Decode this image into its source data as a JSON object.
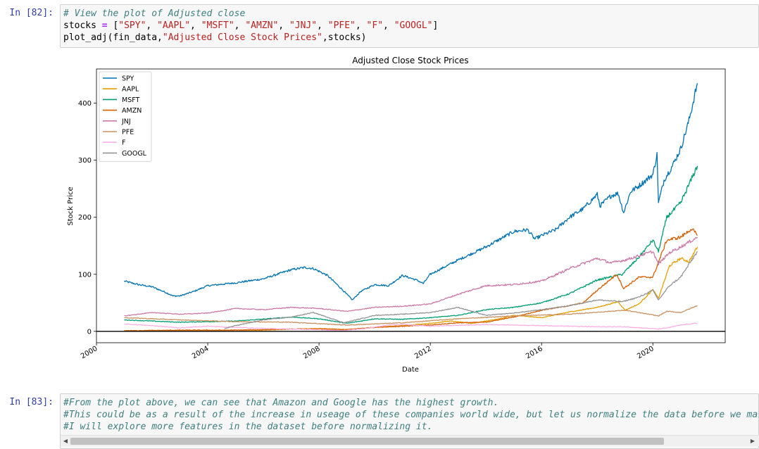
{
  "cells": {
    "cell1": {
      "prompt": "In [82]:",
      "line1_comment": "# View the plot of Adjusted close",
      "line2": {
        "var": "stocks ",
        "eq": "=",
        "open": " [",
        "items": [
          "\"SPY\"",
          "\"AAPL\"",
          "\"MSFT\"",
          "\"AMZN\"",
          "\"JNJ\"",
          "\"PFE\"",
          "\"F\"",
          "\"GOOGL\""
        ],
        "close": "]"
      },
      "line3": {
        "fn": "plot_adj(fin_data,",
        "str": "\"Adjusted Close Stock Prices\"",
        "end": ",stocks)"
      }
    },
    "cell2": {
      "prompt": "In [83]:",
      "lines": [
        "#From the plot above, we can see that Amazon and Google has the highest growth.",
        "#This could be as a result of the increase in useage of these companies world wide, but let us normalize the data before we make",
        "#I will explore more features in the dataset before normalizing it."
      ]
    }
  },
  "chart_data": {
    "type": "line",
    "title": "Adjusted Close Stock Prices",
    "xlabel": "Date",
    "ylabel": "Stock Price",
    "xlim": [
      2000,
      2022.6
    ],
    "ylim": [
      -20,
      460
    ],
    "xticks": [
      2000,
      2004,
      2008,
      2012,
      2016,
      2020
    ],
    "xtick_labels": [
      "2000",
      "2004",
      "2008",
      "2012",
      "2016",
      "2020"
    ],
    "yticks": [
      0,
      100,
      200,
      300,
      400
    ],
    "ytick_labels": [
      "0",
      "100",
      "200",
      "300",
      "400"
    ],
    "legend_position": "upper-left",
    "grid": false,
    "zero_line": true,
    "series": [
      {
        "name": "SPY",
        "color": "#0072b2",
        "x": [
          2001.0,
          2001.5,
          2002.0,
          2002.5,
          2002.75,
          2003.0,
          2003.5,
          2004.0,
          2005.0,
          2006.0,
          2007.0,
          2007.5,
          2007.8,
          2008.3,
          2008.8,
          2009.2,
          2009.5,
          2010.0,
          2010.5,
          2011.0,
          2011.5,
          2011.75,
          2012.0,
          2013.0,
          2014.0,
          2015.0,
          2015.5,
          2015.75,
          2016.1,
          2016.5,
          2017.0,
          2017.5,
          2018.0,
          2018.1,
          2018.5,
          2018.75,
          2018.95,
          2019.2,
          2019.5,
          2020.0,
          2020.15,
          2020.2,
          2020.4,
          2020.7,
          2021.0,
          2021.3,
          2021.6
        ],
        "y": [
          88,
          82,
          78,
          68,
          62,
          62,
          70,
          80,
          85,
          92,
          108,
          112,
          110,
          98,
          75,
          55,
          70,
          82,
          80,
          98,
          90,
          84,
          100,
          125,
          148,
          175,
          178,
          162,
          170,
          178,
          200,
          215,
          240,
          220,
          238,
          242,
          208,
          245,
          255,
          275,
          310,
          225,
          265,
          290,
          320,
          370,
          435
        ]
      },
      {
        "name": "AAPL",
        "color": "#e69f00",
        "x": [
          2001.0,
          2003.0,
          2004.0,
          2005.0,
          2006.0,
          2007.0,
          2008.0,
          2009.0,
          2010.0,
          2011.0,
          2012.0,
          2012.7,
          2013.5,
          2014.5,
          2015.0,
          2016.0,
          2017.0,
          2018.0,
          2018.75,
          2019.0,
          2019.5,
          2020.0,
          2020.2,
          2020.6,
          2021.0,
          2021.3,
          2021.6
        ],
        "y": [
          1,
          1,
          1,
          2,
          2,
          4,
          5,
          3,
          7,
          10,
          14,
          18,
          14,
          22,
          28,
          24,
          34,
          42,
          52,
          37,
          48,
          73,
          58,
          115,
          128,
          122,
          148
        ]
      },
      {
        "name": "MSFT",
        "color": "#009e73",
        "x": [
          2001.0,
          2002.0,
          2003.0,
          2005.0,
          2007.0,
          2008.0,
          2009.0,
          2010.0,
          2011.0,
          2012.0,
          2013.0,
          2014.0,
          2015.0,
          2016.0,
          2017.0,
          2018.0,
          2018.9,
          2019.5,
          2020.0,
          2020.2,
          2020.5,
          2021.0,
          2021.6
        ],
        "y": [
          20,
          18,
          16,
          18,
          25,
          22,
          14,
          22,
          21,
          24,
          28,
          38,
          42,
          50,
          66,
          90,
          100,
          130,
          160,
          140,
          200,
          225,
          290
        ]
      },
      {
        "name": "AMZN",
        "color": "#d55e00",
        "x": [
          2001.0,
          2003.0,
          2005.0,
          2007.0,
          2008.0,
          2009.0,
          2010.0,
          2011.0,
          2012.0,
          2013.0,
          2014.0,
          2015.0,
          2016.0,
          2017.0,
          2017.5,
          2018.0,
          2018.7,
          2018.95,
          2019.5,
          2020.0,
          2020.5,
          2021.0,
          2021.4,
          2021.6
        ],
        "y": [
          1,
          2,
          2,
          4,
          4,
          3,
          7,
          9,
          11,
          15,
          16,
          25,
          37,
          45,
          50,
          72,
          100,
          75,
          95,
          95,
          160,
          165,
          180,
          168
        ]
      },
      {
        "name": "JNJ",
        "color": "#cc79a7",
        "x": [
          2001.0,
          2002.0,
          2003.0,
          2004.0,
          2005.0,
          2006.0,
          2007.0,
          2008.0,
          2009.0,
          2010.0,
          2011.0,
          2012.0,
          2013.0,
          2014.0,
          2015.0,
          2016.0,
          2017.0,
          2018.0,
          2018.5,
          2019.0,
          2020.0,
          2020.2,
          2020.6,
          2021.0,
          2021.6
        ],
        "y": [
          27,
          33,
          30,
          32,
          40,
          38,
          42,
          40,
          35,
          42,
          44,
          48,
          65,
          80,
          82,
          88,
          110,
          128,
          120,
          125,
          140,
          118,
          138,
          148,
          165
        ]
      },
      {
        "name": "PFE",
        "color": "#ca9161",
        "x": [
          2001.0,
          2003.0,
          2005.0,
          2007.0,
          2009.0,
          2011.0,
          2013.0,
          2015.0,
          2017.0,
          2019.0,
          2020.2,
          2020.5,
          2021.0,
          2021.6
        ],
        "y": [
          24,
          20,
          17,
          16,
          11,
          15,
          22,
          27,
          30,
          37,
          27,
          35,
          33,
          45
        ]
      },
      {
        "name": "F",
        "color": "#fbafe4",
        "x": [
          2001.0,
          2002.0,
          2003.0,
          2004.0,
          2006.0,
          2008.0,
          2008.8,
          2009.5,
          2010.5,
          2011.0,
          2012.0,
          2014.0,
          2016.0,
          2018.0,
          2019.0,
          2020.2,
          2020.5,
          2021.0,
          2021.5,
          2021.6
        ],
        "y": [
          13,
          10,
          6,
          9,
          5,
          3,
          1,
          4,
          11,
          12,
          9,
          12,
          10,
          8,
          8,
          4,
          6,
          11,
          14,
          13
        ]
      },
      {
        "name": "GOOGL",
        "color": "#949494",
        "x": [
          2004.6,
          2005.0,
          2006.0,
          2007.0,
          2007.8,
          2008.9,
          2009.5,
          2010.0,
          2011.0,
          2012.0,
          2013.0,
          2014.0,
          2015.0,
          2016.0,
          2017.0,
          2018.0,
          2018.9,
          2019.5,
          2020.0,
          2020.2,
          2020.6,
          2021.0,
          2021.6
        ],
        "y": [
          5,
          10,
          20,
          25,
          33,
          15,
          22,
          28,
          30,
          33,
          42,
          28,
          32,
          38,
          45,
          55,
          52,
          60,
          72,
          55,
          80,
          95,
          140
        ]
      }
    ]
  }
}
